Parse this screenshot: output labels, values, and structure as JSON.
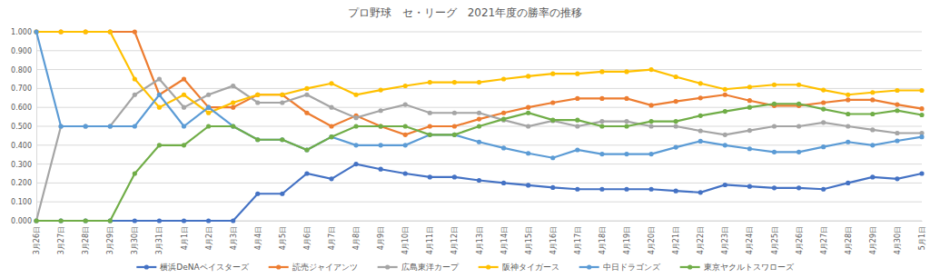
{
  "chart_data": {
    "type": "line",
    "title": "プロ野球　セ・リーグ　2021年度の勝率の推移",
    "categories": [
      "3月26日",
      "3月27日",
      "3月28日",
      "3月29日",
      "3月30日",
      "3月31日",
      "4月1日",
      "4月2日",
      "4月3日",
      "4月4日",
      "4月5日",
      "4月6日",
      "4月7日",
      "4月8日",
      "4月9日",
      "4月10日",
      "4月11日",
      "4月12日",
      "4月13日",
      "4月14日",
      "4月15日",
      "4月16日",
      "4月17日",
      "4月18日",
      "4月19日",
      "4月20日",
      "4月21日",
      "4月22日",
      "4月23日",
      "4月24日",
      "4月25日",
      "4月26日",
      "4月27日",
      "4月28日",
      "4月29日",
      "4月30日",
      "5月1日"
    ],
    "series": [
      {
        "name": "横浜DeNAベイスターズ",
        "color": "#4472c4",
        "values": [
          0,
          0,
          0,
          0,
          0,
          0,
          0,
          0,
          0,
          0.143,
          0.143,
          0.25,
          0.222,
          0.3,
          0.273,
          0.25,
          0.231,
          0.231,
          0.214,
          0.2,
          0.188,
          0.176,
          0.167,
          0.167,
          0.167,
          0.167,
          0.158,
          0.15,
          0.19,
          0.182,
          0.174,
          0.174,
          0.167,
          0.2,
          0.231,
          0.222,
          0.25
        ]
      },
      {
        "name": "読売ジャイアンツ",
        "color": "#ed7d31",
        "values": [
          1,
          1,
          1,
          1,
          1,
          0.667,
          0.75,
          0.6,
          0.6,
          0.667,
          0.667,
          0.571,
          0.5,
          0.556,
          0.5,
          0.455,
          0.5,
          0.5,
          0.538,
          0.571,
          0.6,
          0.625,
          0.647,
          0.647,
          0.647,
          0.611,
          0.632,
          0.65,
          0.667,
          0.636,
          0.609,
          0.609,
          0.625,
          0.64,
          0.64,
          0.615,
          0.593
        ]
      },
      {
        "name": "広島東洋カープ",
        "color": "#a5a5a5",
        "values": [
          0,
          0.5,
          0.5,
          0.5,
          0.667,
          0.75,
          0.6,
          0.667,
          0.714,
          0.625,
          0.625,
          0.667,
          0.6,
          0.545,
          0.583,
          0.615,
          0.571,
          0.571,
          0.571,
          0.533,
          0.5,
          0.529,
          0.5,
          0.526,
          0.526,
          0.5,
          0.5,
          0.476,
          0.455,
          0.478,
          0.5,
          0.5,
          0.52,
          0.5,
          0.481,
          0.464,
          0.464
        ]
      },
      {
        "name": "阪神タイガース",
        "color": "#ffc000",
        "values": [
          1,
          1,
          1,
          1,
          0.75,
          0.6,
          0.667,
          0.571,
          0.625,
          0.667,
          0.667,
          0.7,
          0.727,
          0.667,
          0.692,
          0.714,
          0.733,
          0.733,
          0.733,
          0.75,
          0.765,
          0.778,
          0.778,
          0.789,
          0.789,
          0.8,
          0.762,
          0.727,
          0.696,
          0.708,
          0.72,
          0.72,
          0.692,
          0.667,
          0.679,
          0.69,
          0.69
        ]
      },
      {
        "name": "中日ドラゴンズ",
        "color": "#5b9bd5",
        "values": [
          1,
          0.5,
          0.5,
          0.5,
          0.5,
          0.667,
          0.5,
          0.6,
          0.5,
          0.429,
          0.429,
          0.375,
          0.444,
          0.4,
          0.4,
          0.4,
          0.455,
          0.455,
          0.417,
          0.385,
          0.357,
          0.333,
          0.375,
          0.353,
          0.353,
          0.353,
          0.389,
          0.421,
          0.4,
          0.381,
          0.364,
          0.364,
          0.391,
          0.417,
          0.4,
          0.423,
          0.444
        ]
      },
      {
        "name": "東京ヤクルトスワローズ",
        "color": "#70ad47",
        "values": [
          0,
          0,
          0,
          0,
          0.25,
          0.4,
          0.4,
          0.5,
          0.5,
          0.429,
          0.429,
          0.375,
          0.444,
          0.5,
          0.5,
          0.5,
          0.455,
          0.455,
          0.5,
          0.538,
          0.571,
          0.533,
          0.533,
          0.5,
          0.5,
          0.526,
          0.526,
          0.556,
          0.579,
          0.6,
          0.619,
          0.619,
          0.591,
          0.565,
          0.565,
          0.583,
          0.56
        ]
      }
    ],
    "ylim": [
      0,
      1
    ],
    "yticks": [
      {
        "value": 0,
        "label": "0.000"
      },
      {
        "value": 0.1,
        "label": "0.100"
      },
      {
        "value": 0.2,
        "label": "0.200"
      },
      {
        "value": 0.3,
        "label": "0.300"
      },
      {
        "value": 0.4,
        "label": "0.400"
      },
      {
        "value": 0.5,
        "label": "0.500"
      },
      {
        "value": 0.6,
        "label": "0.600"
      },
      {
        "value": 0.7,
        "label": "0.700"
      },
      {
        "value": 0.8,
        "label": "0.800"
      },
      {
        "value": 0.9,
        "label": "0.900"
      },
      {
        "value": 1,
        "label": "1.000"
      }
    ],
    "grid": true,
    "legend": "bottom",
    "marker": "circle"
  }
}
